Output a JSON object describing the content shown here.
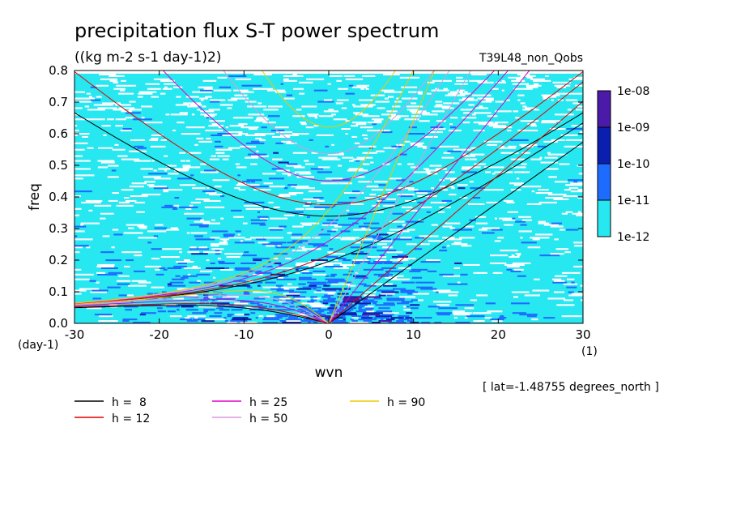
{
  "chart_data": {
    "type": "heatmap",
    "title": "precipitation flux S-T power spectrum",
    "units": "((kg m-2 s-1 day-1)2)",
    "experiment": "T39L48_non_Qobs",
    "xlabel": "wvn",
    "ylabel": "freq",
    "xunit": "(1)",
    "yunit": "(day-1)",
    "xlim": [
      -30,
      30
    ],
    "ylim": [
      0,
      0.8
    ],
    "xticks": [
      -30,
      -20,
      -10,
      0,
      10,
      20,
      30
    ],
    "xtick_labels": [
      "-30",
      "-20",
      "-10",
      "0",
      "10",
      "20",
      "30"
    ],
    "yticks": [
      0,
      0.1,
      0.2,
      0.3,
      0.4,
      0.5,
      0.6,
      0.7,
      0.8
    ],
    "ytick_labels": [
      "0.0",
      "0.1",
      "0.2",
      "0.3",
      "0.4",
      "0.5",
      "0.6",
      "0.7",
      "0.8"
    ],
    "colorbar": {
      "levels": [
        "1e-08",
        "1e-09",
        "1e-10",
        "1e-11",
        "1e-12"
      ],
      "colors": [
        "#4b1aa8",
        "#0a1fb0",
        "#1e6cff",
        "#27e8f0"
      ]
    },
    "location_note": "[ lat=-1.48755 degrees_north ]",
    "dispersion_curves": [
      {
        "label": "h =  8",
        "h": 8,
        "color": "#000000"
      },
      {
        "label": "h = 12",
        "h": 12,
        "color": "#e00000"
      },
      {
        "label": "h = 25",
        "h": 25,
        "color": "#e000c8"
      },
      {
        "label": "h = 50",
        "h": 50,
        "color": "#dd99dd"
      },
      {
        "label": "h = 90",
        "h": 90,
        "color": "#f0c800"
      }
    ]
  }
}
